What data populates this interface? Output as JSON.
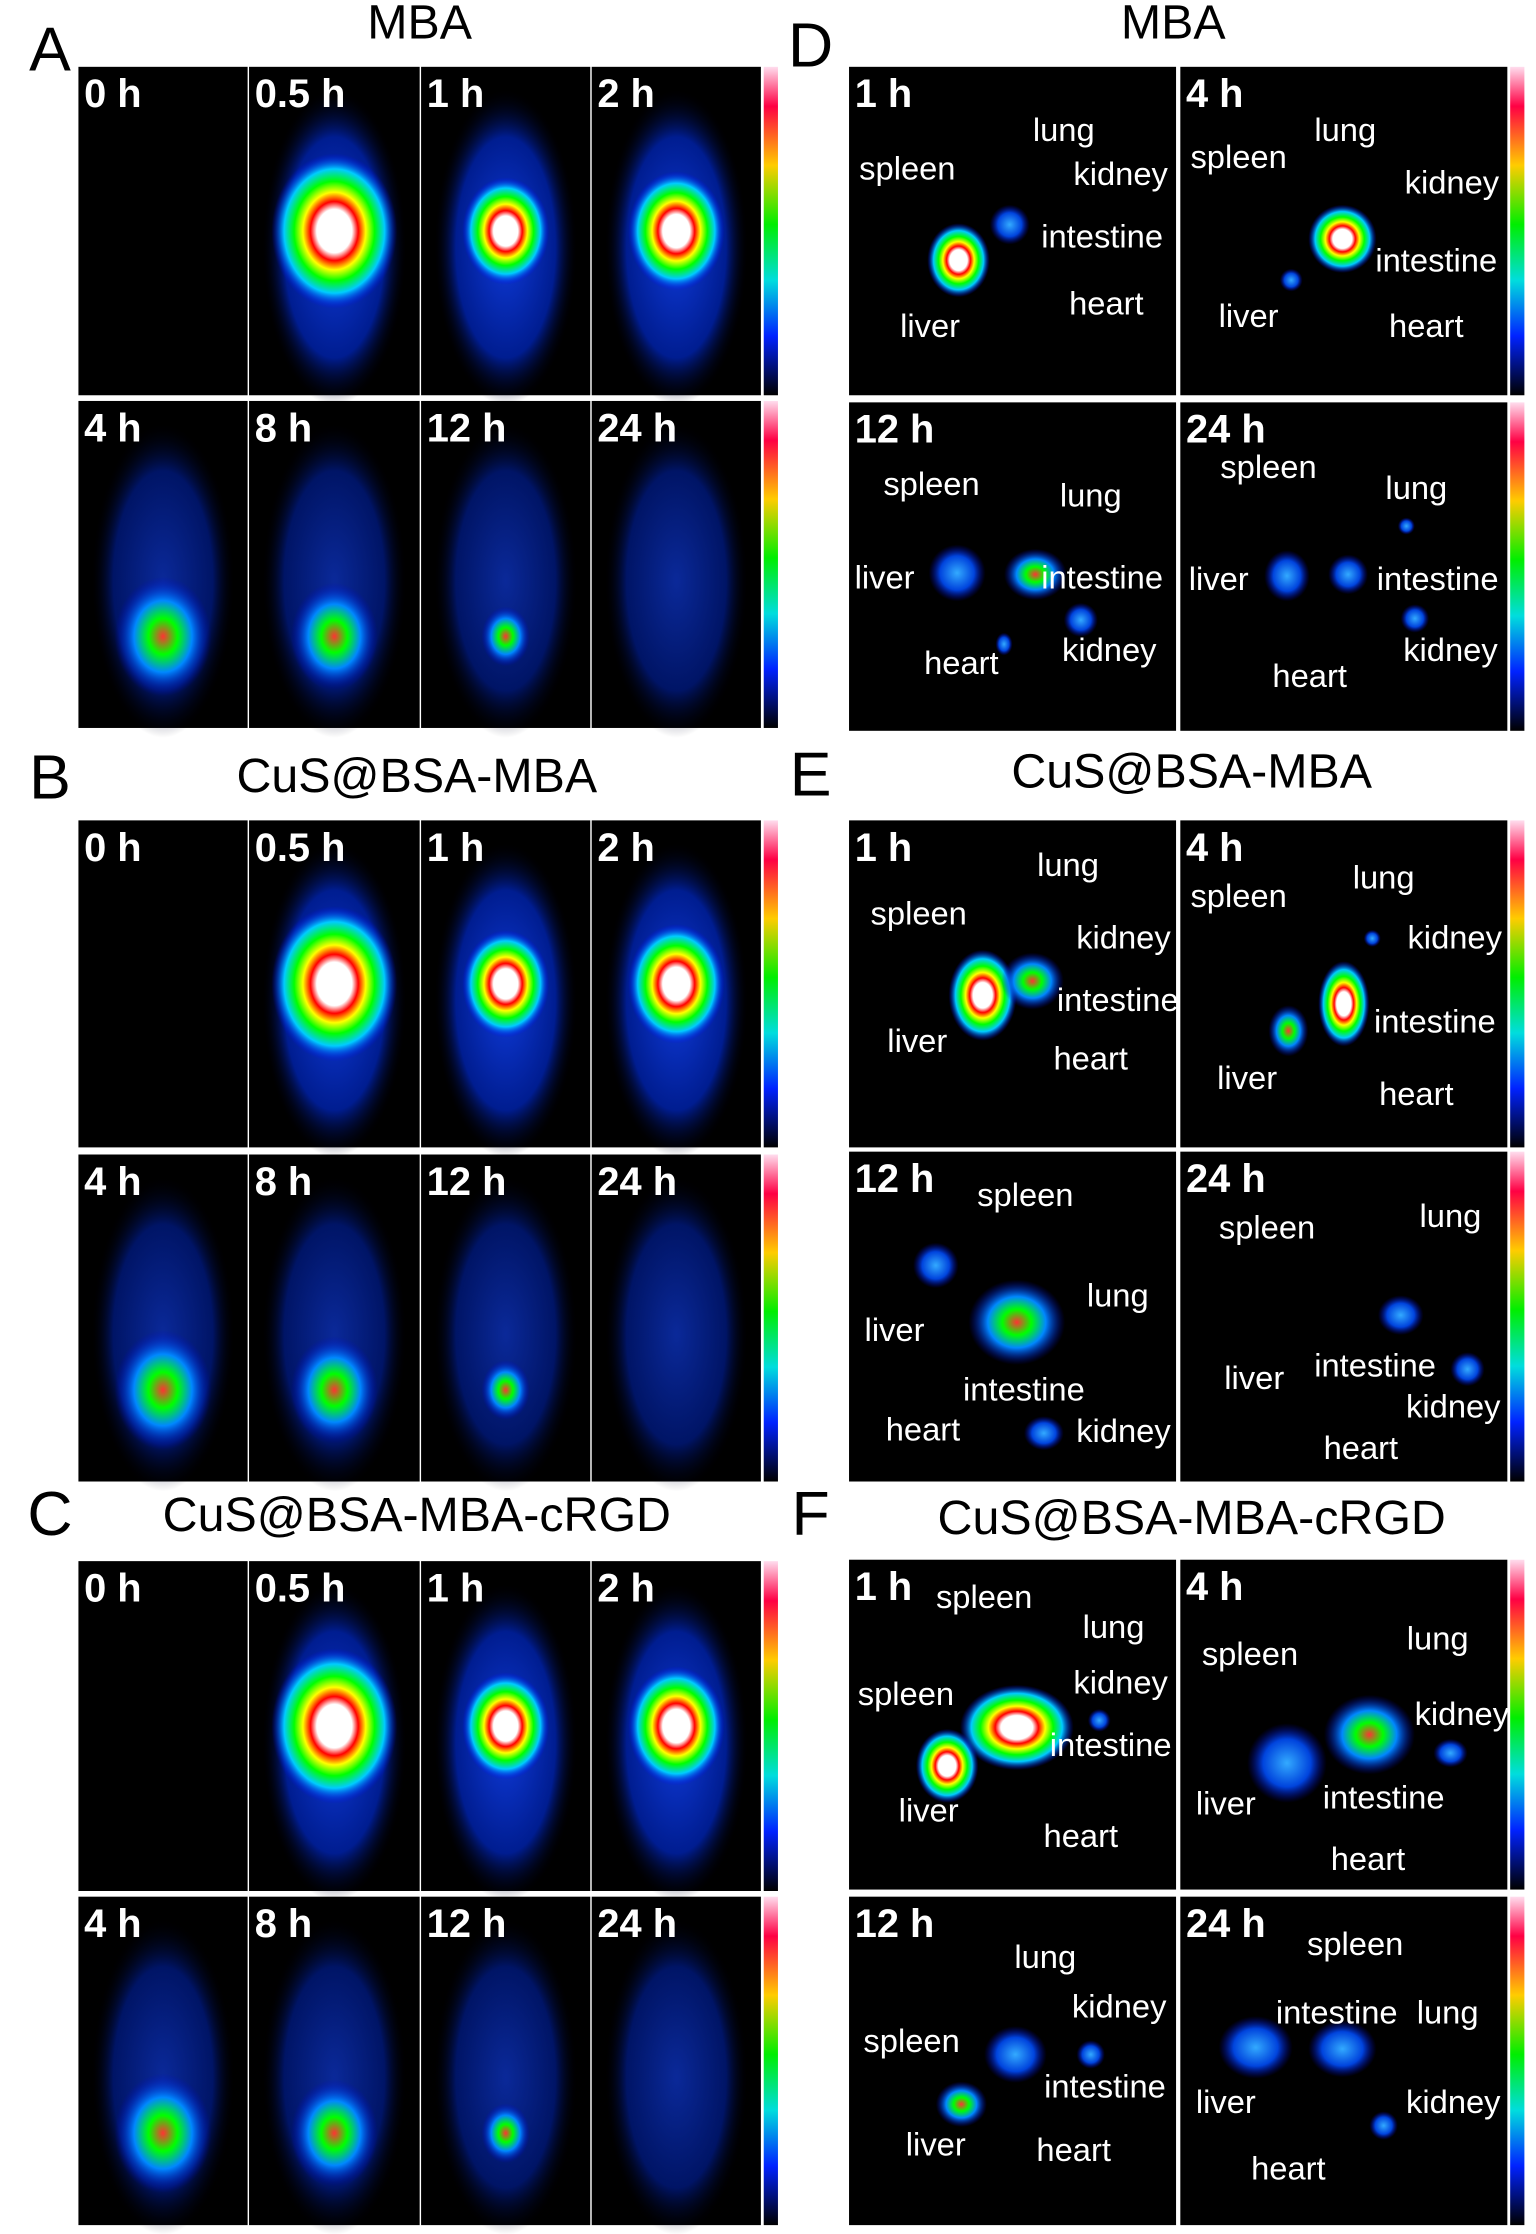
{
  "panels": [
    {
      "letter": "A",
      "title": "MBA",
      "frames": [
        {
          "time": "0 h"
        },
        {
          "time": "0.5 h"
        },
        {
          "time": "1 h"
        },
        {
          "time": "2 h"
        },
        {
          "time": "4 h"
        },
        {
          "time": "8 h"
        },
        {
          "time": "12 h"
        },
        {
          "time": "24 h"
        }
      ]
    },
    {
      "letter": "B",
      "title": "CuS@BSA-MBA",
      "frames": [
        {
          "time": "0 h"
        },
        {
          "time": "0.5 h"
        },
        {
          "time": "1 h"
        },
        {
          "time": "2 h"
        },
        {
          "time": "4 h"
        },
        {
          "time": "8 h"
        },
        {
          "time": "12 h"
        },
        {
          "time": "24 h"
        }
      ]
    },
    {
      "letter": "C",
      "title": "CuS@BSA-MBA-cRGD",
      "frames": [
        {
          "time": "0 h"
        },
        {
          "time": "0.5 h"
        },
        {
          "time": "1 h"
        },
        {
          "time": "2 h"
        },
        {
          "time": "4 h"
        },
        {
          "time": "8 h"
        },
        {
          "time": "12 h"
        },
        {
          "time": "24 h"
        }
      ]
    },
    {
      "letter": "D",
      "title": "MBA",
      "frames": [
        {
          "time": "1 h",
          "labels": [
            "spleen",
            "lung",
            "kidney",
            "intestine",
            "heart",
            "liver"
          ]
        },
        {
          "time": "4 h",
          "labels": [
            "spleen",
            "lung",
            "kidney",
            "intestine",
            "liver",
            "heart"
          ]
        },
        {
          "time": "12 h",
          "labels": [
            "spleen",
            "lung",
            "liver",
            "intestine",
            "heart",
            "kidney"
          ]
        },
        {
          "time": "24 h",
          "labels": [
            "spleen",
            "lung",
            "liver",
            "intestine",
            "kidney",
            "heart"
          ]
        }
      ]
    },
    {
      "letter": "E",
      "title": "CuS@BSA-MBA",
      "frames": [
        {
          "time": "1 h",
          "labels": [
            "lung",
            "spleen",
            "kidney",
            "intestine",
            "liver",
            "heart"
          ]
        },
        {
          "time": "4 h",
          "labels": [
            "lung",
            "spleen",
            "kidney",
            "intestine",
            "liver",
            "heart"
          ]
        },
        {
          "time": "12 h",
          "labels": [
            "spleen",
            "lung",
            "liver",
            "intestine",
            "heart",
            "kidney"
          ]
        },
        {
          "time": "24 h",
          "labels": [
            "spleen",
            "lung",
            "intestine",
            "liver",
            "kidney",
            "heart"
          ]
        }
      ]
    },
    {
      "letter": "F",
      "title": "CuS@BSA-MBA-cRGD",
      "frames": [
        {
          "time": "1 h",
          "labels": [
            "spleen",
            "lung",
            "kidney",
            "spleen",
            "intestine",
            "liver",
            "heart"
          ]
        },
        {
          "time": "4 h",
          "labels": [
            "spleen",
            "lung",
            "kidney",
            "liver",
            "intestine",
            "heart"
          ]
        },
        {
          "time": "12 h",
          "labels": [
            "lung",
            "kidney",
            "spleen",
            "intestine",
            "liver",
            "heart"
          ]
        },
        {
          "time": "24 h",
          "labels": [
            "spleen",
            "intestine",
            "lung",
            "liver",
            "kidney",
            "heart"
          ]
        }
      ]
    }
  ]
}
